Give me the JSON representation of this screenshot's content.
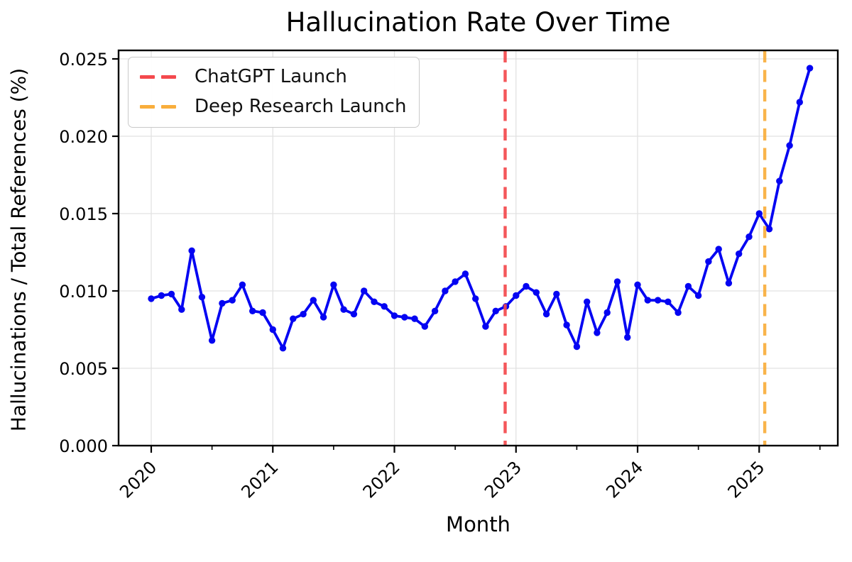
{
  "title": "Hallucination Rate Over Time",
  "x_axis": {
    "label": "Month",
    "tick_years": [
      "2020",
      "2021",
      "2022",
      "2023",
      "2024",
      "2025"
    ]
  },
  "y_axis": {
    "label": "Hallucinations / Total References (%)",
    "tick_labels": [
      "0.000",
      "0.005",
      "0.010",
      "0.015",
      "0.020",
      "0.025"
    ]
  },
  "legend": [
    {
      "label": "ChatGPT Launch",
      "color": "#f4494d"
    },
    {
      "label": "Deep Research Launch",
      "color": "#f9ae3c"
    }
  ],
  "chart_data": {
    "type": "line",
    "title": "Hallucination Rate Over Time",
    "xlabel": "Month",
    "ylabel": "Hallucinations / Total References (%)",
    "start_month": "2020-01",
    "frequency": "monthly",
    "grid": true,
    "grid_color": "#e2e2e2",
    "legend_position": "upper left",
    "ylim": [
      0,
      0.0256
    ],
    "yticks": [
      0,
      0.005,
      0.01,
      0.015,
      0.02,
      0.025
    ],
    "ytick_labels": [
      "0.000",
      "0.005",
      "0.010",
      "0.015",
      "0.020",
      "0.025"
    ],
    "xticks": [
      {
        "label": "2020",
        "month_index": 0
      },
      {
        "label": "2021",
        "month_index": 12
      },
      {
        "label": "2022",
        "month_index": 24
      },
      {
        "label": "2023",
        "month_index": 36
      },
      {
        "label": "2024",
        "month_index": 48
      },
      {
        "label": "2025",
        "month_index": 60
      }
    ],
    "x_minor_tick_month_indices": [
      6,
      18,
      30,
      42,
      54,
      66
    ],
    "series": [
      {
        "name": "Hallucination rate",
        "color": "#0404f2",
        "marker": "o",
        "values": [
          0.0095,
          0.0097,
          0.0098,
          0.0088,
          0.0126,
          0.0096,
          0.0068,
          0.0092,
          0.0094,
          0.0104,
          0.0087,
          0.0086,
          0.0075,
          0.0063,
          0.0082,
          0.0085,
          0.0094,
          0.0083,
          0.0104,
          0.0088,
          0.0085,
          0.01,
          0.0093,
          0.009,
          0.0084,
          0.0083,
          0.0082,
          0.0077,
          0.0087,
          0.01,
          0.0106,
          0.0111,
          0.0095,
          0.0077,
          0.0087,
          0.009,
          0.0097,
          0.0103,
          0.0099,
          0.0085,
          0.0098,
          0.0078,
          0.0064,
          0.0093,
          0.0073,
          0.0086,
          0.0106,
          0.007,
          0.0104,
          0.0094,
          0.0094,
          0.0093,
          0.0086,
          0.0103,
          0.0097,
          0.0119,
          0.0127,
          0.0105,
          0.0124,
          0.0135,
          0.015,
          0.014,
          0.0171,
          0.0194,
          0.0222,
          0.0244
        ]
      }
    ],
    "vlines": [
      {
        "label": "ChatGPT Launch",
        "color": "#f4494d",
        "month_index": 34.93,
        "style": "dashed"
      },
      {
        "label": "Deep Research Launch",
        "color": "#f9ae3c",
        "month_index": 60.55,
        "style": "dashed"
      }
    ]
  }
}
